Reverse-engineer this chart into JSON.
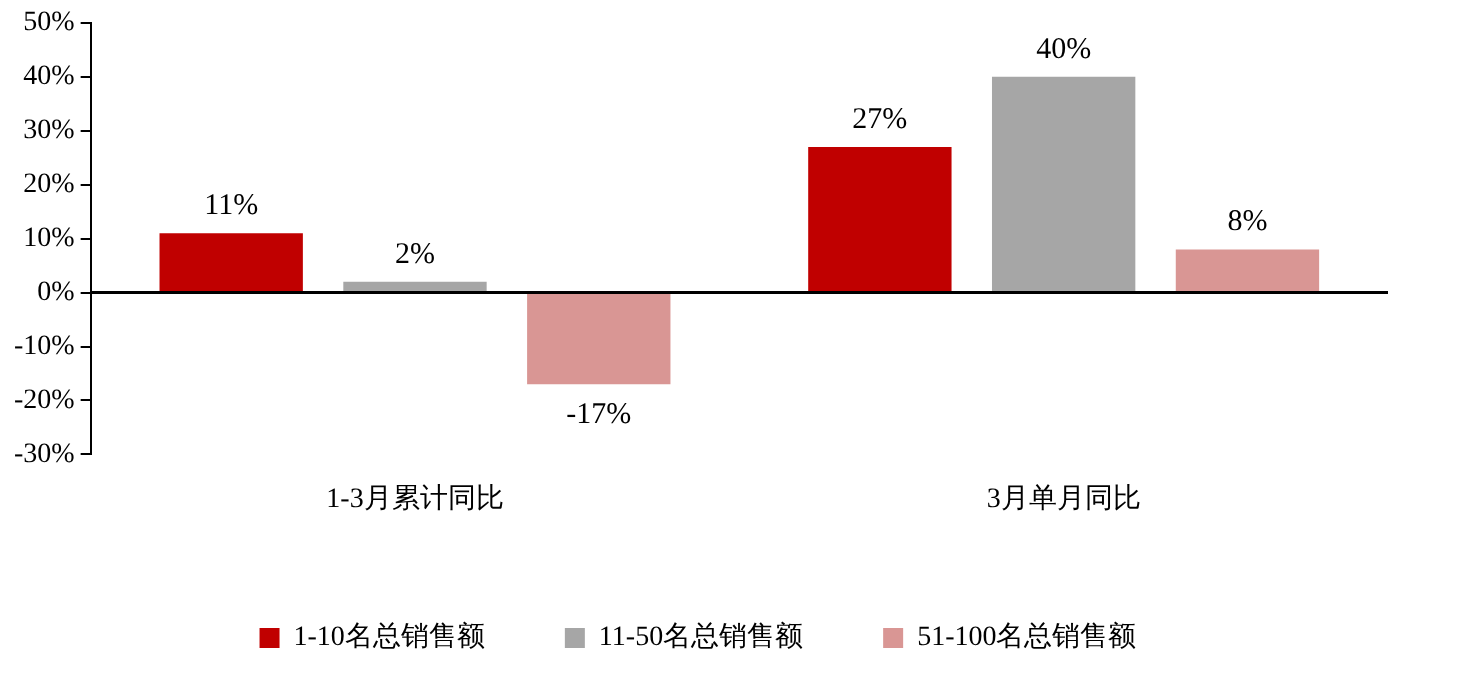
{
  "chart_data": {
    "type": "bar",
    "categories": [
      "1-3月累计同比",
      "3月单月同比"
    ],
    "series": [
      {
        "name": "1-10名总销售额",
        "color": "#c00000",
        "values": [
          11,
          27
        ],
        "value_labels": [
          "11%",
          "27%"
        ]
      },
      {
        "name": "11-50名总销售额",
        "color": "#a6a6a6",
        "values": [
          2,
          40
        ],
        "value_labels": [
          "2%",
          "40%"
        ]
      },
      {
        "name": "51-100名总销售额",
        "color": "#d99694",
        "values": [
          -17,
          8
        ],
        "value_labels": [
          "-17%",
          "8%"
        ]
      }
    ],
    "ylim": [
      -30,
      50
    ],
    "yticks": [
      {
        "value": -30,
        "label": "-30%"
      },
      {
        "value": -20,
        "label": "-20%"
      },
      {
        "value": -10,
        "label": "-10%"
      },
      {
        "value": 0,
        "label": "0%"
      },
      {
        "value": 10,
        "label": "10%"
      },
      {
        "value": 20,
        "label": "20%"
      },
      {
        "value": 30,
        "label": "30%"
      },
      {
        "value": 40,
        "label": "40%"
      },
      {
        "value": 50,
        "label": "50%"
      }
    ],
    "ref_lines": [
      {
        "axis": "y",
        "value": 0,
        "color": "#000000"
      }
    ],
    "grid": false,
    "legend": "bottom"
  }
}
